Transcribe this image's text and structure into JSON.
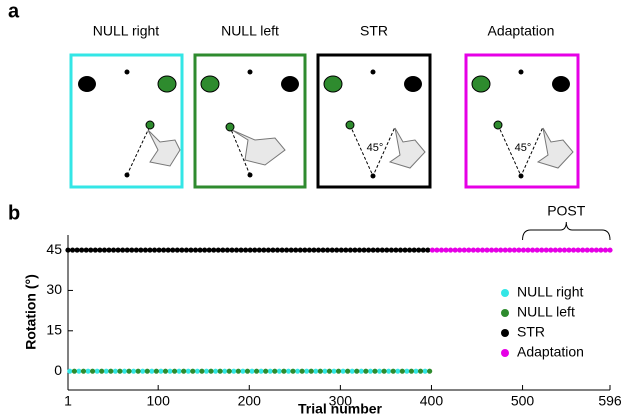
{
  "figure_labels": [
    "a",
    "b"
  ],
  "diagram": {
    "panels": [
      {
        "title": "NULL right"
      },
      {
        "title": "NULL left"
      },
      {
        "title": "STR",
        "angle": "45°"
      },
      {
        "title": "Adaptation",
        "angle": "45°"
      }
    ]
  },
  "chart_data": {
    "type": "scatter",
    "xlabel": "Trial number",
    "ylabel": "Rotation (°)",
    "xlim": [
      1,
      596
    ],
    "ylim": [
      -7,
      50.6
    ],
    "xticks": [
      1,
      100,
      200,
      300,
      400,
      500,
      596
    ],
    "yticks": [
      0,
      15,
      30,
      45
    ],
    "legend": "right",
    "annotation": {
      "text": "POST",
      "x": [
        500,
        596
      ]
    },
    "series": [
      {
        "name": "NULL right",
        "color": "#33e6e6",
        "x": [
          3,
          13,
          23,
          33,
          43,
          53,
          63,
          73,
          83,
          93,
          103,
          113,
          123,
          133,
          143,
          153,
          163,
          173,
          183,
          193,
          203,
          213,
          223,
          233,
          243,
          253,
          263,
          273,
          283,
          293,
          303,
          313,
          323,
          333,
          343,
          353,
          363,
          373,
          383,
          393
        ],
        "values": [
          0,
          0,
          0,
          0,
          0,
          0,
          0,
          0,
          0,
          0,
          0,
          0,
          0,
          0,
          0,
          0,
          0,
          0,
          0,
          0,
          0,
          0,
          0,
          0,
          0,
          0,
          0,
          0,
          0,
          0,
          0,
          0,
          0,
          0,
          0,
          0,
          0,
          0,
          0,
          0
        ]
      },
      {
        "name": "NULL left",
        "color": "#2e8b2e",
        "x": [
          8,
          18,
          28,
          38,
          48,
          58,
          68,
          78,
          88,
          98,
          108,
          118,
          128,
          138,
          148,
          158,
          168,
          178,
          188,
          198,
          208,
          218,
          228,
          238,
          248,
          258,
          268,
          278,
          288,
          298,
          308,
          318,
          328,
          338,
          348,
          358,
          368,
          378,
          388,
          398
        ],
        "values": [
          0,
          0,
          0,
          0,
          0,
          0,
          0,
          0,
          0,
          0,
          0,
          0,
          0,
          0,
          0,
          0,
          0,
          0,
          0,
          0,
          0,
          0,
          0,
          0,
          0,
          0,
          0,
          0,
          0,
          0,
          0,
          0,
          0,
          0,
          0,
          0,
          0,
          0,
          0,
          0
        ]
      },
      {
        "name": "STR",
        "color": "#000000",
        "x": [
          1,
          6,
          11,
          16,
          21,
          26,
          31,
          36,
          41,
          46,
          51,
          56,
          61,
          66,
          71,
          76,
          81,
          86,
          91,
          96,
          101,
          106,
          111,
          116,
          121,
          126,
          131,
          136,
          141,
          146,
          151,
          156,
          161,
          166,
          171,
          176,
          181,
          186,
          191,
          196,
          201,
          206,
          211,
          216,
          221,
          226,
          231,
          236,
          241,
          246,
          251,
          256,
          261,
          266,
          271,
          276,
          281,
          286,
          291,
          296,
          301,
          306,
          311,
          316,
          321,
          326,
          331,
          336,
          341,
          346,
          351,
          356,
          361,
          366,
          371,
          376,
          381,
          386,
          391,
          396
        ],
        "values": [
          45,
          45,
          45,
          45,
          45,
          45,
          45,
          45,
          45,
          45,
          45,
          45,
          45,
          45,
          45,
          45,
          45,
          45,
          45,
          45,
          45,
          45,
          45,
          45,
          45,
          45,
          45,
          45,
          45,
          45,
          45,
          45,
          45,
          45,
          45,
          45,
          45,
          45,
          45,
          45,
          45,
          45,
          45,
          45,
          45,
          45,
          45,
          45,
          45,
          45,
          45,
          45,
          45,
          45,
          45,
          45,
          45,
          45,
          45,
          45,
          45,
          45,
          45,
          45,
          45,
          45,
          45,
          45,
          45,
          45,
          45,
          45,
          45,
          45,
          45,
          45,
          45,
          45,
          45,
          45
        ]
      },
      {
        "name": "Adaptation",
        "color": "#e600e6",
        "x": [
          401,
          406,
          411,
          416,
          421,
          426,
          431,
          436,
          441,
          446,
          451,
          456,
          461,
          466,
          471,
          476,
          481,
          486,
          491,
          496,
          501,
          506,
          511,
          516,
          521,
          526,
          531,
          536,
          541,
          546,
          551,
          556,
          561,
          566,
          571,
          576,
          581,
          586,
          591,
          596
        ],
        "values": [
          45,
          45,
          45,
          45,
          45,
          45,
          45,
          45,
          45,
          45,
          45,
          45,
          45,
          45,
          45,
          45,
          45,
          45,
          45,
          45,
          45,
          45,
          45,
          45,
          45,
          45,
          45,
          45,
          45,
          45,
          45,
          45,
          45,
          45,
          45,
          45,
          45,
          45,
          45,
          45
        ]
      }
    ]
  }
}
